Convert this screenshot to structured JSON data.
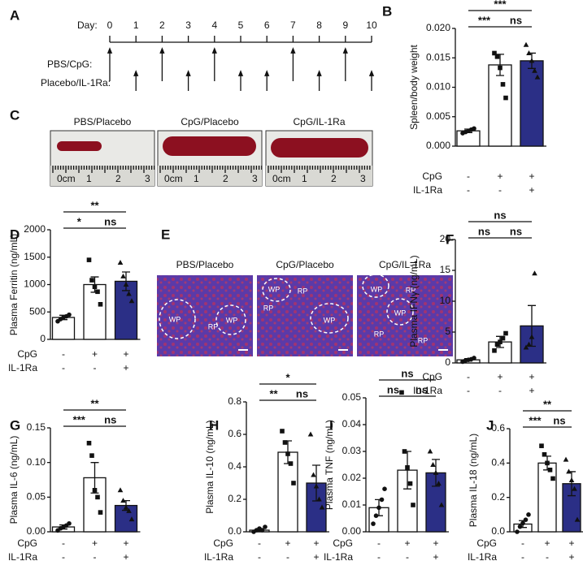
{
  "timeline": {
    "letter": "A",
    "day_label": "Day:",
    "days": [
      0,
      1,
      2,
      3,
      4,
      5,
      6,
      7,
      8,
      9,
      10
    ],
    "rows": [
      {
        "name": "PBS/CpG:",
        "days": [
          0,
          2,
          4,
          7,
          9
        ]
      },
      {
        "name": "Placebo/IL-1Ra:",
        "days": [
          1,
          3,
          5,
          6,
          8,
          10
        ]
      }
    ]
  },
  "photos": {
    "letter": "C",
    "captions": [
      "PBS/Placebo",
      "CpG/Placebo",
      "CpG/IL-1Ra"
    ],
    "ruler": [
      "0cm",
      "1",
      "2",
      "3"
    ]
  },
  "histology": {
    "letter": "E",
    "captions": [
      "PBS/Placebo",
      "CpG/Placebo",
      "CpG/IL-1Ra"
    ],
    "labels": [
      [
        "WP",
        "RP",
        "WP"
      ],
      [
        "WP",
        "RP",
        "RP",
        "WP"
      ],
      [
        "WP",
        "RP",
        "WP",
        "RP",
        "RP"
      ]
    ]
  },
  "chart_data": [
    {
      "type": "bar",
      "letter": "B",
      "ylabel": "Spleen/body weight",
      "ylim": [
        0,
        0.02
      ],
      "yticks": [
        {
          "value": 0,
          "label": "0.000"
        },
        {
          "value": 0.005,
          "label": "0.005"
        },
        {
          "value": 0.01,
          "label": "0.010"
        },
        {
          "value": 0.015,
          "label": "0.015"
        },
        {
          "value": 0.02,
          "label": "0.020"
        }
      ],
      "colors": [
        "#ffffff",
        "#ffffff",
        "#2b2f86"
      ],
      "values": [
        0.0026,
        0.0138,
        0.0145
      ],
      "errors": [
        0.0003,
        0.0018,
        0.0013
      ],
      "points": [
        [
          0.0022,
          0.0024,
          0.0026,
          0.0028,
          0.003
        ],
        [
          0.0158,
          0.0152,
          0.0133,
          0.0105,
          0.0082
        ],
        [
          0.0172,
          0.0158,
          0.0145,
          0.0128,
          0.0117
        ]
      ],
      "rows": [
        {
          "name": "CpG",
          "marks": [
            "-",
            "+",
            "+"
          ]
        },
        {
          "name": "IL-1Ra",
          "marks": [
            "-",
            "-",
            "+"
          ]
        }
      ],
      "brackets": [
        {
          "from": 0,
          "to": 1,
          "text": "***"
        },
        {
          "from": 1,
          "to": 2,
          "text": "ns"
        },
        {
          "from": 0,
          "to": 2,
          "text": "***"
        }
      ]
    },
    {
      "type": "bar",
      "letter": "D",
      "ylabel": "Plasma Ferritin (ng/mL)",
      "ylim": [
        0,
        2000
      ],
      "yticks": [
        0,
        500,
        1000,
        1500,
        2000
      ],
      "colors": [
        "#ffffff",
        "#ffffff",
        "#2b2f86"
      ],
      "values": [
        400,
        1000,
        1060
      ],
      "errors": [
        40,
        140,
        170
      ],
      "points": [
        [
          330,
          370,
          400,
          420,
          450
        ],
        [
          1450,
          1080,
          960,
          870,
          640
        ],
        [
          1400,
          1150,
          1000,
          830,
          700
        ]
      ],
      "rows": [
        {
          "name": "CpG",
          "marks": [
            "-",
            "+",
            "+"
          ]
        },
        {
          "name": "IL-1Ra",
          "marks": [
            "-",
            "-",
            "+"
          ]
        }
      ],
      "brackets": [
        {
          "from": 0,
          "to": 1,
          "text": "*"
        },
        {
          "from": 1,
          "to": 2,
          "text": "ns"
        },
        {
          "from": 0,
          "to": 2,
          "text": "**"
        }
      ]
    },
    {
      "type": "bar",
      "letter": "F",
      "ylabel": "Plasma IFNγ (ng/mL)",
      "ylim": [
        0,
        20
      ],
      "yticks": [
        0,
        5,
        10,
        15,
        20
      ],
      "colors": [
        "#ffffff",
        "#ffffff",
        "#2b2f86"
      ],
      "values": [
        0.5,
        3.4,
        6.0
      ],
      "errors": [
        0.2,
        0.9,
        3.3
      ],
      "points": [
        [
          0.2,
          0.4,
          0.5,
          0.6,
          0.8
        ],
        [
          2.0,
          3.0,
          3.4,
          4.0,
          4.8
        ],
        [
          2.5,
          3.0,
          4.2,
          14.5
        ]
      ],
      "rows": [
        {
          "name": "CpG",
          "marks": [
            "-",
            "+",
            "+"
          ]
        },
        {
          "name": "IL-1Ra",
          "marks": [
            "-",
            "-",
            "+"
          ]
        }
      ],
      "brackets": [
        {
          "from": 0,
          "to": 1,
          "text": "ns"
        },
        {
          "from": 1,
          "to": 2,
          "text": "ns"
        },
        {
          "from": 0,
          "to": 2,
          "text": "ns"
        }
      ]
    },
    {
      "type": "bar",
      "letter": "G",
      "ylabel": "Plasma IL-6 (ng/mL)",
      "ylim": [
        0,
        0.15
      ],
      "yticks": [
        {
          "value": 0,
          "label": "0.00"
        },
        {
          "value": 0.05,
          "label": "0.05"
        },
        {
          "value": 0.1,
          "label": "0.10"
        },
        {
          "value": 0.15,
          "label": "0.15"
        }
      ],
      "colors": [
        "#ffffff",
        "#ffffff",
        "#2b2f86"
      ],
      "values": [
        0.007,
        0.078,
        0.038
      ],
      "errors": [
        0.003,
        0.022,
        0.007
      ],
      "points": [
        [
          0.002,
          0.005,
          0.007,
          0.009,
          0.012
        ],
        [
          0.128,
          0.11,
          0.06,
          0.05,
          0.028
        ],
        [
          0.06,
          0.045,
          0.035,
          0.03,
          0.018
        ]
      ],
      "rows": [
        {
          "name": "CpG",
          "marks": [
            "-",
            "+",
            "+"
          ]
        },
        {
          "name": "IL-1Ra",
          "marks": [
            "-",
            "-",
            "+"
          ]
        }
      ],
      "brackets": [
        {
          "from": 0,
          "to": 1,
          "text": "***"
        },
        {
          "from": 1,
          "to": 2,
          "text": "ns"
        },
        {
          "from": 0,
          "to": 2,
          "text": "**"
        }
      ]
    },
    {
      "type": "bar",
      "letter": "H",
      "ylabel": "Plasma IL-10 (ng/mL)",
      "ylim": [
        0,
        0.8
      ],
      "yticks": [
        {
          "value": 0,
          "label": "0.0"
        },
        {
          "value": 0.2,
          "label": "0.2"
        },
        {
          "value": 0.4,
          "label": "0.4"
        },
        {
          "value": 0.6,
          "label": "0.6"
        },
        {
          "value": 0.8,
          "label": "0.8"
        }
      ],
      "colors": [
        "#ffffff",
        "#ffffff",
        "#2b2f86"
      ],
      "values": [
        0.01,
        0.49,
        0.3
      ],
      "errors": [
        0.005,
        0.07,
        0.11
      ],
      "points": [
        [
          0.0,
          0.01,
          0.02,
          0.01,
          0.03
        ],
        [
          0.62,
          0.55,
          0.48,
          0.42,
          0.3
        ],
        [
          0.6,
          0.35,
          0.28,
          0.2,
          0.15
        ]
      ],
      "rows": [
        {
          "name": "CpG",
          "marks": [
            "-",
            "+",
            "+"
          ]
        },
        {
          "name": "IL-1Ra",
          "marks": [
            "-",
            "-",
            "+"
          ]
        }
      ],
      "brackets": [
        {
          "from": 0,
          "to": 1,
          "text": "**"
        },
        {
          "from": 1,
          "to": 2,
          "text": "ns"
        },
        {
          "from": 0,
          "to": 2,
          "text": "*"
        }
      ]
    },
    {
      "type": "bar",
      "letter": "I",
      "ylabel": "Plasma TNF (ng/mL)",
      "ylim": [
        0,
        0.05
      ],
      "yticks": [
        {
          "value": 0,
          "label": "0.00"
        },
        {
          "value": 0.01,
          "label": "0.01"
        },
        {
          "value": 0.02,
          "label": "0.02"
        },
        {
          "value": 0.03,
          "label": "0.03"
        },
        {
          "value": 0.04,
          "label": "0.04"
        },
        {
          "value": 0.05,
          "label": "0.05"
        }
      ],
      "colors": [
        "#ffffff",
        "#ffffff",
        "#2b2f86"
      ],
      "values": [
        0.009,
        0.023,
        0.022
      ],
      "errors": [
        0.003,
        0.007,
        0.005
      ],
      "points": [
        [
          0.003,
          0.006,
          0.009,
          0.012,
          0.016
        ],
        [
          0.052,
          0.03,
          0.024,
          0.018,
          0.01
        ],
        [
          0.03,
          0.025,
          0.022,
          0.018,
          0.01
        ]
      ],
      "rows": [
        {
          "name": "CpG",
          "marks": [
            "-",
            "+",
            "+"
          ]
        },
        {
          "name": "IL-1Ra",
          "marks": [
            "-",
            "-",
            "+"
          ]
        }
      ],
      "brackets": [
        {
          "from": 0,
          "to": 1,
          "text": "ns"
        },
        {
          "from": 1,
          "to": 2,
          "text": "ns"
        },
        {
          "from": 0,
          "to": 2,
          "text": "ns"
        }
      ]
    },
    {
      "type": "bar",
      "letter": "J",
      "ylabel": "Plasma IL-18 (ng/mL)",
      "ylim": [
        0,
        0.6
      ],
      "yticks": [
        {
          "value": 0,
          "label": "0.0"
        },
        {
          "value": 0.2,
          "label": "0.2"
        },
        {
          "value": 0.4,
          "label": "0.4"
        },
        {
          "value": 0.6,
          "label": "0.6"
        }
      ],
      "colors": [
        "#ffffff",
        "#ffffff",
        "#2b2f86"
      ],
      "values": [
        0.045,
        0.4,
        0.28
      ],
      "errors": [
        0.02,
        0.04,
        0.07
      ],
      "points": [
        [
          0.0,
          0.03,
          0.05,
          0.07,
          0.1
        ],
        [
          0.5,
          0.45,
          0.4,
          0.36,
          0.31
        ],
        [
          0.42,
          0.35,
          0.3,
          0.25,
          0.07
        ]
      ],
      "rows": [
        {
          "name": "CpG",
          "marks": [
            "-",
            "+",
            "+"
          ]
        },
        {
          "name": "IL-1Ra",
          "marks": [
            "-",
            "-",
            "+"
          ]
        }
      ],
      "brackets": [
        {
          "from": 0,
          "to": 1,
          "text": "***"
        },
        {
          "from": 1,
          "to": 2,
          "text": "ns"
        },
        {
          "from": 0,
          "to": 2,
          "text": "**"
        }
      ]
    }
  ]
}
